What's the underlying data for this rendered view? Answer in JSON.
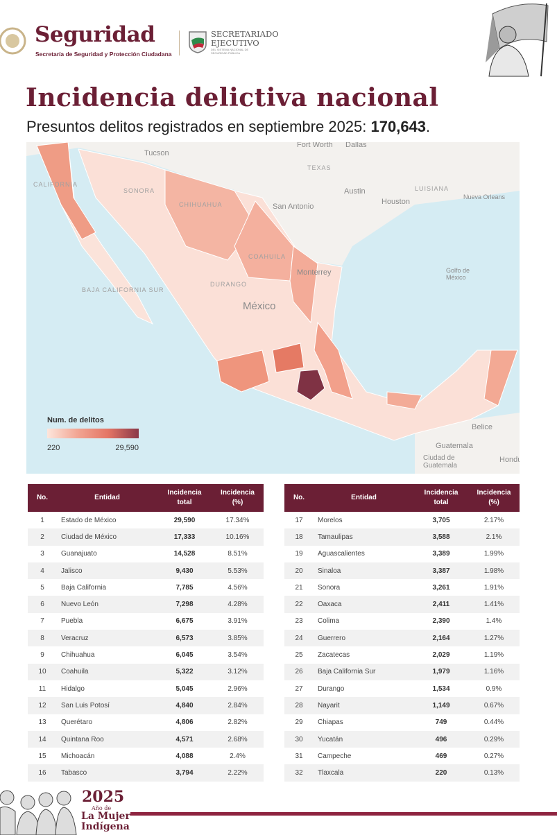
{
  "header": {
    "brand": "Seguridad",
    "brand_subtitle": "Secretaría de Seguridad y Protección Ciudadana",
    "secretariado_line1": "SECRETARIADO",
    "secretariado_line2": "EJECUTIVO",
    "secretariado_small": "DEL SISTEMA NACIONAL DE SEGURIDAD PÚBLICA"
  },
  "title": "Incidencia delictiva nacional",
  "subtitle_prefix": "Presuntos delitos registrados en septiembre 2025: ",
  "subtitle_total": "170,643",
  "subtitle_suffix": ".",
  "map": {
    "place_labels": [
      "Tucson",
      "Fort Worth",
      "Dallas",
      "TEXAS",
      "Austin",
      "San Antonio",
      "Houston",
      "LUISIANA",
      "Nueva Orleans",
      "Golfo de México",
      "México",
      "Monterrey",
      "CALIFORNIA",
      "SONORA",
      "CHIHUAHUA",
      "BAJA CALIFORNIA SUR",
      "DURANGO",
      "COAHUILA",
      "Belice",
      "Guatemala",
      "Ciudad de Guatemala",
      "Hondu"
    ],
    "legend_title": "Num. de delitos",
    "legend_min": "220",
    "legend_max": "29,590",
    "colors": {
      "low": "#fde6dc",
      "mid": "#e47565",
      "high": "#8a3848",
      "sea": "#d5ecf3"
    }
  },
  "table": {
    "headers": {
      "no": "No.",
      "entidad": "Entidad",
      "total_1": "Incidencia",
      "total_2": "total",
      "pct_1": "Incidencia",
      "pct_2": "(%)"
    },
    "rows": [
      {
        "no": "1",
        "entidad": "Estado de México",
        "total": "29,590",
        "pct": "17.34%"
      },
      {
        "no": "2",
        "entidad": "Ciudad de México",
        "total": "17,333",
        "pct": "10.16%"
      },
      {
        "no": "3",
        "entidad": "Guanajuato",
        "total": "14,528",
        "pct": "8.51%"
      },
      {
        "no": "4",
        "entidad": "Jalisco",
        "total": "9,430",
        "pct": "5.53%"
      },
      {
        "no": "5",
        "entidad": "Baja California",
        "total": "7,785",
        "pct": "4.56%"
      },
      {
        "no": "6",
        "entidad": "Nuevo León",
        "total": "7,298",
        "pct": "4.28%"
      },
      {
        "no": "7",
        "entidad": "Puebla",
        "total": "6,675",
        "pct": "3.91%"
      },
      {
        "no": "8",
        "entidad": "Veracruz",
        "total": "6,573",
        "pct": "3.85%"
      },
      {
        "no": "9",
        "entidad": "Chihuahua",
        "total": "6,045",
        "pct": "3.54%"
      },
      {
        "no": "10",
        "entidad": "Coahuila",
        "total": "5,322",
        "pct": "3.12%"
      },
      {
        "no": "11",
        "entidad": "Hidalgo",
        "total": "5,045",
        "pct": "2.96%"
      },
      {
        "no": "12",
        "entidad": "San Luis Potosí",
        "total": "4,840",
        "pct": "2.84%"
      },
      {
        "no": "13",
        "entidad": "Querétaro",
        "total": "4,806",
        "pct": "2.82%"
      },
      {
        "no": "14",
        "entidad": "Quintana Roo",
        "total": "4,571",
        "pct": "2.68%"
      },
      {
        "no": "15",
        "entidad": "Michoacán",
        "total": "4,088",
        "pct": "2.4%"
      },
      {
        "no": "16",
        "entidad": "Tabasco",
        "total": "3,794",
        "pct": "2.22%"
      },
      {
        "no": "17",
        "entidad": "Morelos",
        "total": "3,705",
        "pct": "2.17%"
      },
      {
        "no": "18",
        "entidad": "Tamaulipas",
        "total": "3,588",
        "pct": "2.1%"
      },
      {
        "no": "19",
        "entidad": "Aguascalientes",
        "total": "3,389",
        "pct": "1.99%"
      },
      {
        "no": "20",
        "entidad": "Sinaloa",
        "total": "3,387",
        "pct": "1.98%"
      },
      {
        "no": "21",
        "entidad": "Sonora",
        "total": "3,261",
        "pct": "1.91%"
      },
      {
        "no": "22",
        "entidad": "Oaxaca",
        "total": "2,411",
        "pct": "1.41%"
      },
      {
        "no": "23",
        "entidad": "Colima",
        "total": "2,390",
        "pct": "1.4%"
      },
      {
        "no": "24",
        "entidad": "Guerrero",
        "total": "2,164",
        "pct": "1.27%"
      },
      {
        "no": "25",
        "entidad": "Zacatecas",
        "total": "2,029",
        "pct": "1.19%"
      },
      {
        "no": "26",
        "entidad": "Baja California Sur",
        "total": "1,979",
        "pct": "1.16%"
      },
      {
        "no": "27",
        "entidad": "Durango",
        "total": "1,534",
        "pct": "0.9%"
      },
      {
        "no": "28",
        "entidad": "Nayarit",
        "total": "1,149",
        "pct": "0.67%"
      },
      {
        "no": "29",
        "entidad": "Chiapas",
        "total": "749",
        "pct": "0.44%"
      },
      {
        "no": "30",
        "entidad": "Yucatán",
        "total": "496",
        "pct": "0.29%"
      },
      {
        "no": "31",
        "entidad": "Campeche",
        "total": "469",
        "pct": "0.27%"
      },
      {
        "no": "32",
        "entidad": "Tlaxcala",
        "total": "220",
        "pct": "0.13%"
      }
    ]
  },
  "footer": {
    "year": "2025",
    "line2": "Año de",
    "line3": "La Mujer",
    "line4": "Indígena"
  },
  "brand_color": "#6b1f35"
}
